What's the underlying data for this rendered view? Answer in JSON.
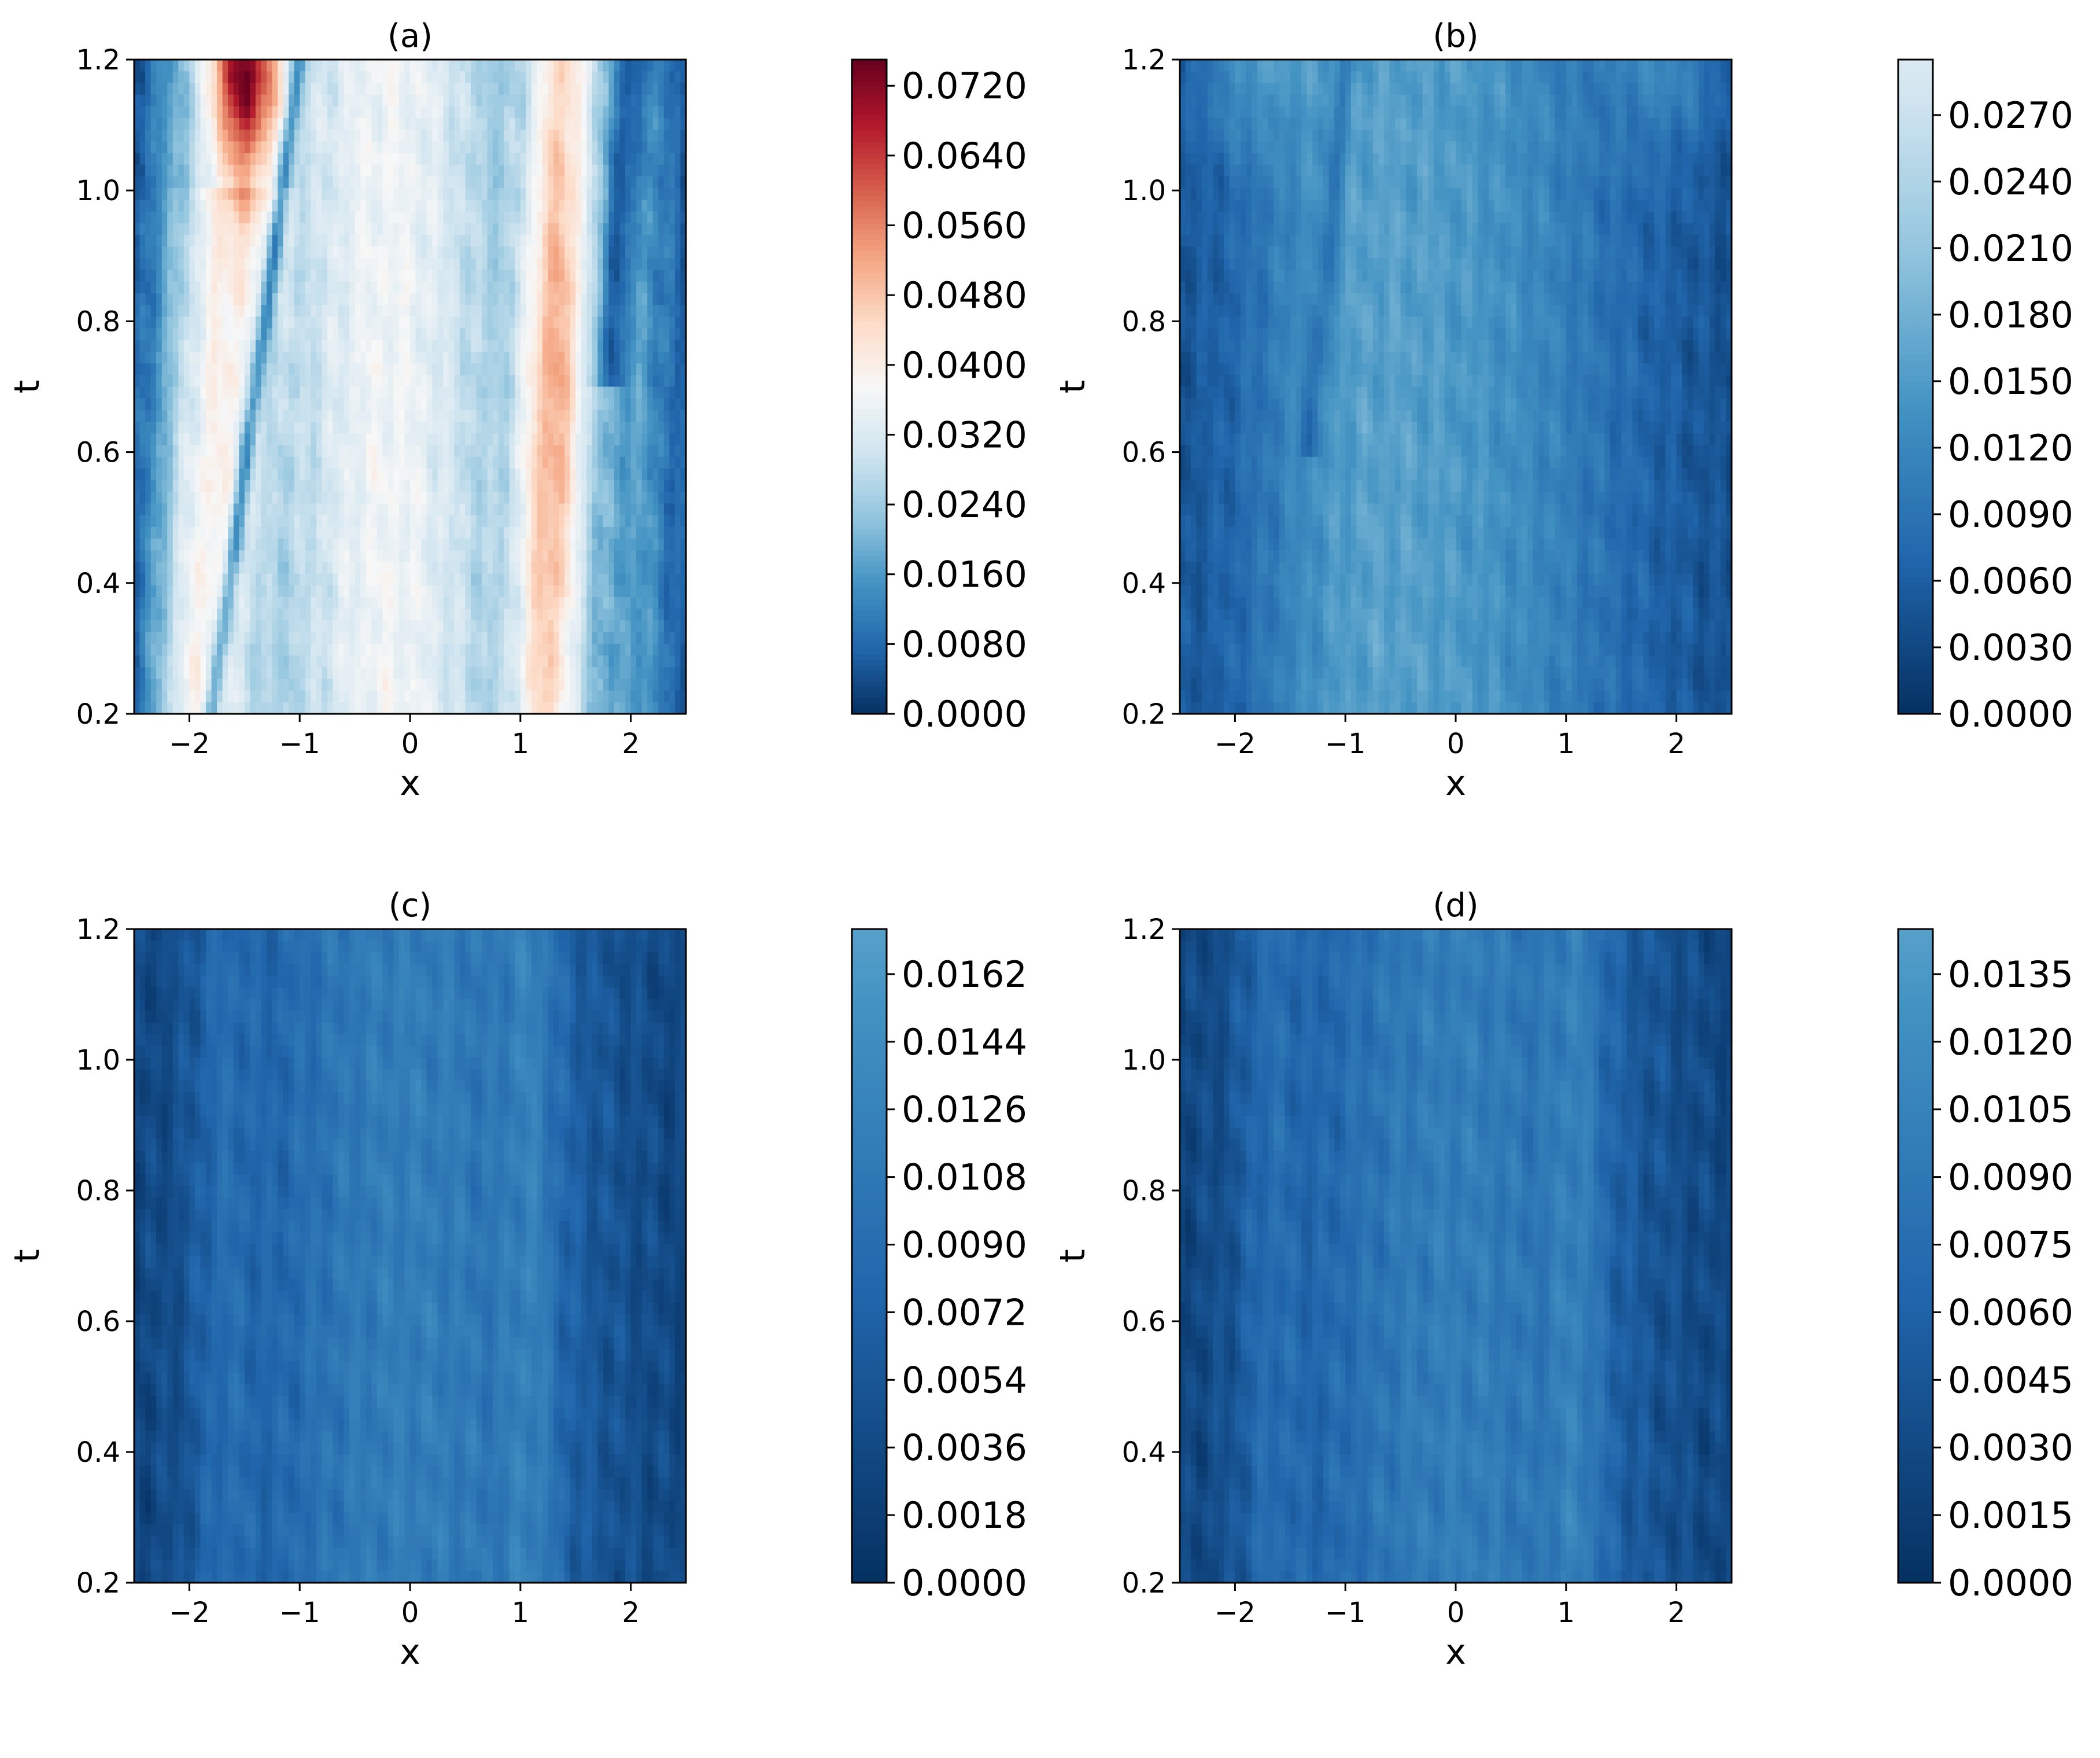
{
  "chart_data": [
    {
      "panel": "a",
      "type": "heatmap",
      "title": "(a)",
      "xlabel": "x",
      "ylabel": "t",
      "xlim": [
        -2.5,
        2.5
      ],
      "ylim": [
        0.2,
        1.2
      ],
      "xticks": [
        "−2",
        "−1",
        "0",
        "1",
        "2"
      ],
      "xtick_values": [
        -2,
        -1,
        0,
        1,
        2
      ],
      "yticks": [
        "0.2",
        "0.4",
        "0.6",
        "0.8",
        "1.0",
        "1.2"
      ],
      "ytick_values": [
        0.2,
        0.4,
        0.6,
        0.8,
        1.0,
        1.2
      ],
      "colormap": "diverging-red-blue",
      "colorbar": {
        "vmin": 0.0,
        "vmax": 0.075,
        "ticks": [
          "0.0000",
          "0.0080",
          "0.0160",
          "0.0240",
          "0.0320",
          "0.0400",
          "0.0480",
          "0.0560",
          "0.0640",
          "0.0720"
        ],
        "tick_values": [
          0.0,
          0.008,
          0.016,
          0.024,
          0.032,
          0.04,
          0.048,
          0.056,
          0.064,
          0.072
        ]
      },
      "features": [
        {
          "description": "hot spot",
          "x": -1.5,
          "t": 1.15,
          "value": 0.072
        },
        {
          "description": "warm band",
          "x": 1.3,
          "t": 0.8,
          "value": 0.05
        }
      ]
    },
    {
      "panel": "b",
      "type": "heatmap",
      "title": "(b)",
      "xlabel": "x",
      "ylabel": "t",
      "xlim": [
        -2.5,
        2.5
      ],
      "ylim": [
        0.2,
        1.2
      ],
      "xticks": [
        "−2",
        "−1",
        "0",
        "1",
        "2"
      ],
      "xtick_values": [
        -2,
        -1,
        0,
        1,
        2
      ],
      "yticks": [
        "0.2",
        "0.4",
        "0.6",
        "0.8",
        "1.0",
        "1.2"
      ],
      "ytick_values": [
        0.2,
        0.4,
        0.6,
        0.8,
        1.0,
        1.2
      ],
      "colormap": "sequential-blue",
      "colorbar": {
        "vmin": 0.0,
        "vmax": 0.0295,
        "ticks": [
          "0.0000",
          "0.0030",
          "0.0060",
          "0.0090",
          "0.0120",
          "0.0150",
          "0.0180",
          "0.0210",
          "0.0240",
          "0.0270"
        ],
        "tick_values": [
          0.0,
          0.003,
          0.006,
          0.009,
          0.012,
          0.015,
          0.018,
          0.021,
          0.024,
          0.027
        ]
      }
    },
    {
      "panel": "c",
      "type": "heatmap",
      "title": "(c)",
      "xlabel": "x",
      "ylabel": "t",
      "xlim": [
        -2.5,
        2.5
      ],
      "ylim": [
        0.2,
        1.2
      ],
      "xticks": [
        "−2",
        "−1",
        "0",
        "1",
        "2"
      ],
      "xtick_values": [
        -2,
        -1,
        0,
        1,
        2
      ],
      "yticks": [
        "0.2",
        "0.4",
        "0.6",
        "0.8",
        "1.0",
        "1.2"
      ],
      "ytick_values": [
        0.2,
        0.4,
        0.6,
        0.8,
        1.0,
        1.2
      ],
      "colormap": "sequential-blue",
      "colorbar": {
        "vmin": 0.0,
        "vmax": 0.0174,
        "ticks": [
          "0.0000",
          "0.0018",
          "0.0036",
          "0.0054",
          "0.0072",
          "0.0090",
          "0.0108",
          "0.0126",
          "0.0144",
          "0.0162"
        ],
        "tick_values": [
          0.0,
          0.0018,
          0.0036,
          0.0054,
          0.0072,
          0.009,
          0.0108,
          0.0126,
          0.0144,
          0.0162
        ]
      }
    },
    {
      "panel": "d",
      "type": "heatmap",
      "title": "(d)",
      "xlabel": "x",
      "ylabel": "t",
      "xlim": [
        -2.5,
        2.5
      ],
      "ylim": [
        0.2,
        1.2
      ],
      "xticks": [
        "−2",
        "−1",
        "0",
        "1",
        "2"
      ],
      "xtick_values": [
        -2,
        -1,
        0,
        1,
        2
      ],
      "yticks": [
        "0.2",
        "0.4",
        "0.6",
        "0.8",
        "1.0",
        "1.2"
      ],
      "ytick_values": [
        0.2,
        0.4,
        0.6,
        0.8,
        1.0,
        1.2
      ],
      "colormap": "sequential-blue",
      "colorbar": {
        "vmin": 0.0,
        "vmax": 0.0145,
        "ticks": [
          "0.0000",
          "0.0015",
          "0.0030",
          "0.0045",
          "0.0060",
          "0.0075",
          "0.0090",
          "0.0105",
          "0.0120",
          "0.0135"
        ],
        "tick_values": [
          0.0,
          0.0015,
          0.003,
          0.0045,
          0.006,
          0.0075,
          0.009,
          0.0105,
          0.012,
          0.0135
        ]
      }
    }
  ]
}
